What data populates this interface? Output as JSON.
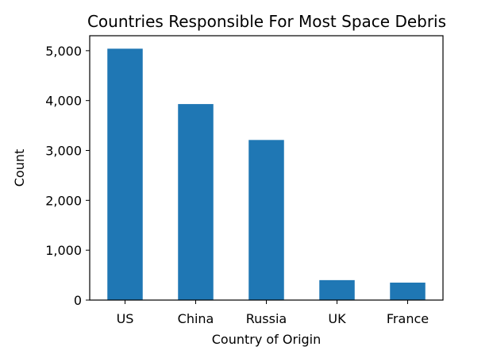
{
  "chart_data": {
    "type": "bar",
    "title": "Countries Responsible For Most Space Debris",
    "xlabel": "Country of Origin",
    "ylabel": "Count",
    "categories": [
      "US",
      "China",
      "Russia",
      "UK",
      "France"
    ],
    "values": [
      5040,
      3930,
      3210,
      400,
      350
    ],
    "ylim": [
      0,
      5300
    ],
    "yticks": [
      0,
      1000,
      2000,
      3000,
      4000,
      5000
    ],
    "ytick_labels": [
      "0",
      "1,000",
      "2,000",
      "3,000",
      "4,000",
      "5,000"
    ],
    "bar_color": "#1f77b4",
    "grid": false,
    "legend": "none"
  }
}
